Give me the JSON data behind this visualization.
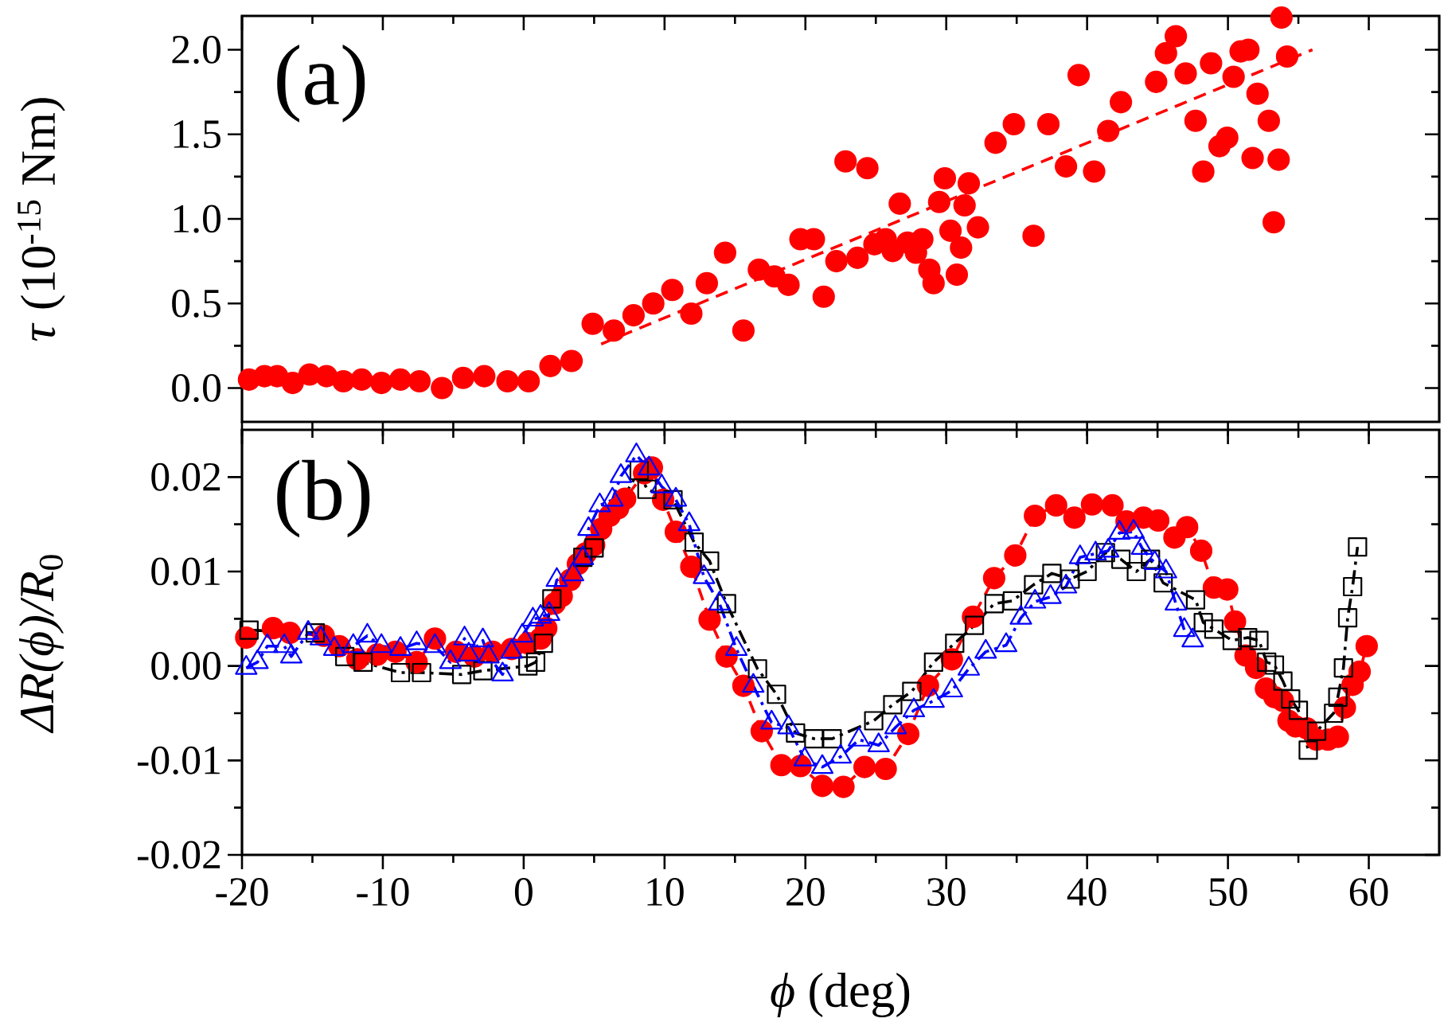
{
  "chart_data": [
    {
      "type": "scatter",
      "ylabel": "*τ* (10$^{-15}$ Nm)",
      "annotations": [
        "(a)"
      ],
      "xlim": [
        -20,
        65
      ],
      "xticks": [
        -20,
        -10,
        0,
        10,
        20,
        30,
        40,
        50,
        60
      ],
      "ylim": [
        -0.2,
        2.2
      ],
      "yticks": [
        {
          "value": 0,
          "label": "0.0"
        },
        {
          "value": 0.5,
          "label": "0.5"
        },
        {
          "value": 1,
          "label": "1.0"
        },
        {
          "value": 1.5,
          "label": "1.5"
        },
        {
          "value": 2,
          "label": "2.0"
        }
      ],
      "tick_labels": "y",
      "series": [
        {
          "type": "scatter",
          "color": "#ff0000",
          "marker": "circle",
          "x": [
            -19.5,
            -18.4,
            -17.5,
            -16.4,
            -15.2,
            -14.0,
            -12.8,
            -11.5,
            -10.1,
            -8.75,
            -7.4,
            -5.8,
            -4.3,
            -2.8,
            -1.15,
            0.35,
            1.9,
            3.4,
            4.9,
            6.4,
            7.8,
            9.2,
            10.55,
            11.9,
            13.0,
            14.3,
            15.6,
            16.7,
            17.8,
            18.8,
            19.65,
            20.6,
            21.3,
            22.2,
            23.7,
            22.85,
            24.4,
            24.9,
            25.7,
            26.2,
            26.7,
            27.25,
            27.85,
            28.3,
            28.8,
            29.1,
            29.5,
            29.9,
            30.3,
            30.75,
            31.05,
            31.3,
            31.6,
            32.25,
            33.5,
            34.8,
            36.2,
            37.25,
            38.5,
            39.4,
            40.5,
            41.5,
            42.4,
            44.9,
            45.6,
            46.3,
            47.0,
            47.7,
            48.25,
            48.8,
            49.4,
            49.95,
            50.4,
            50.9,
            51.45,
            51.75,
            52.1,
            52.9,
            53.25,
            53.6,
            53.8,
            54.2
          ],
          "values": [
            0.05,
            0.07,
            0.07,
            0.03,
            0.08,
            0.07,
            0.04,
            0.05,
            0.03,
            0.05,
            0.04,
            0.0,
            0.06,
            0.07,
            0.04,
            0.04,
            0.13,
            0.16,
            0.38,
            0.34,
            0.43,
            0.5,
            0.58,
            0.44,
            0.62,
            0.8,
            0.34,
            0.7,
            0.66,
            0.61,
            0.88,
            0.88,
            0.54,
            0.75,
            0.77,
            1.34,
            1.3,
            0.85,
            0.88,
            0.81,
            1.09,
            0.86,
            0.8,
            0.88,
            0.7,
            0.62,
            1.1,
            1.24,
            0.93,
            0.67,
            0.83,
            1.08,
            1.21,
            0.95,
            1.45,
            1.56,
            0.9,
            1.56,
            1.31,
            1.85,
            1.28,
            1.52,
            1.69,
            1.81,
            1.98,
            2.08,
            1.86,
            1.58,
            1.28,
            1.92,
            1.43,
            1.48,
            1.84,
            1.99,
            2.0,
            1.36,
            1.74,
            1.58,
            0.98,
            1.35,
            2.19,
            1.96
          ]
        },
        {
          "type": "line",
          "color": "#ff0000",
          "marker": "none",
          "line_style": "dashed",
          "x": [
            5.5,
            56
          ],
          "values": [
            0.26,
            2.0
          ]
        }
      ]
    },
    {
      "type": "line",
      "xlabel": "*ϕ* (deg)",
      "ylabel": "*ΔR(ϕ)/R*$_{0}$",
      "annotations": [
        "(b)"
      ],
      "xlim": [
        -20,
        65
      ],
      "xticks": [
        -20,
        -10,
        0,
        10,
        20,
        30,
        40,
        50,
        60
      ],
      "ylim": [
        -0.02,
        0.025
      ],
      "yticks": [
        {
          "value": -0.02,
          "label": "-0.02"
        },
        {
          "value": -0.01,
          "label": "-0.01"
        },
        {
          "value": 0,
          "label": "0.00"
        },
        {
          "value": 0.01,
          "label": "0.01"
        },
        {
          "value": 0.02,
          "label": "0.02"
        }
      ],
      "series": [
        {
          "color": "#ff0000",
          "marker": "circle",
          "line_style": "dashed",
          "x": [
            -19.7,
            -17.8,
            -16.6,
            -14.2,
            -13.1,
            -11.8,
            -10.4,
            -9.1,
            -7.6,
            -6.3,
            -4.8,
            -3.5,
            -2.2,
            -0.85,
            0.3,
            1.2,
            1.6,
            2.2,
            2.7,
            3.3,
            3.85,
            4.4,
            5.0,
            5.5,
            6.1,
            6.7,
            7.2,
            8.55,
            9.1,
            9.9,
            10.8,
            11.9,
            13.2,
            14.4,
            15.6,
            16.9,
            18.3,
            19.65,
            21.2,
            22.7,
            24.2,
            25.7,
            27.3,
            28.7,
            30.4,
            31.9,
            33.4,
            34.9,
            36.3,
            37.8,
            39.1,
            40.35,
            41.8,
            42.8,
            44.0,
            45.05,
            46.2,
            47.1,
            48.1,
            49.0,
            49.95,
            50.5,
            51.25,
            52.0,
            52.7,
            53.3,
            53.9,
            54.3,
            54.8,
            55.6,
            56.3,
            57.1,
            57.8,
            58.3,
            58.85,
            59.35,
            59.85
          ],
          "values": [
            0.003,
            0.004,
            0.0035,
            0.0032,
            0.0021,
            0.0007,
            0.0012,
            0.0015,
            0.0004,
            0.0029,
            0.0015,
            0.001,
            0.0015,
            0.0018,
            0.0024,
            0.0029,
            0.004,
            0.0066,
            0.0074,
            0.0091,
            0.0108,
            0.0119,
            0.0128,
            0.0145,
            0.0159,
            0.0167,
            0.0177,
            0.0204,
            0.021,
            0.0176,
            0.0142,
            0.0105,
            0.0049,
            0.001,
            -0.0021,
            -0.0069,
            -0.0105,
            -0.0106,
            -0.0127,
            -0.0128,
            -0.0107,
            -0.0109,
            -0.0072,
            -0.0021,
            0.0007,
            0.0052,
            0.0093,
            0.0117,
            0.0159,
            0.017,
            0.0157,
            0.0171,
            0.017,
            0.0153,
            0.0157,
            0.0154,
            0.0136,
            0.0147,
            0.0122,
            0.0083,
            0.0081,
            0.0047,
            0.0011,
            -0.0002,
            -0.0024,
            -0.0033,
            -0.0037,
            -0.0058,
            -0.0064,
            -0.0066,
            -0.0078,
            -0.0078,
            -0.0075,
            -0.0044,
            -0.002,
            -0.0006,
            0.0021
          ]
        },
        {
          "color": "#000000",
          "marker": "square",
          "line_style": "dashdot",
          "x": [
            -19.5,
            -14.8,
            -12.7,
            -11.4,
            -8.75,
            -7.25,
            -4.4,
            -2.9,
            0.3,
            0.85,
            1.4,
            2.0,
            4.2,
            5.0,
            8.2,
            8.75,
            10.6,
            12.1,
            13.2,
            14.4,
            16.6,
            17.95,
            19.3,
            20.6,
            21.9,
            24.85,
            26.2,
            27.55,
            29.1,
            30.6,
            32.0,
            33.4,
            34.7,
            36.2,
            37.5,
            38.8,
            40.0,
            41.3,
            42.4,
            43.5,
            44.5,
            45.4,
            47.7,
            48.25,
            49.0,
            50.3,
            51.4,
            52.2,
            52.75,
            53.3,
            53.9,
            54.45,
            55.0,
            55.7,
            56.3,
            57.5,
            57.8,
            58.2,
            58.5,
            58.85,
            59.2
          ],
          "values": [
            0.0038,
            0.0035,
            0.001,
            0.0004,
            -0.0007,
            -0.0007,
            -0.0009,
            -0.0005,
            0.0,
            0.0004,
            0.0024,
            0.0071,
            0.0115,
            0.0125,
            0.0207,
            0.0187,
            0.0176,
            0.0131,
            0.0111,
            0.0066,
            -0.0003,
            -0.003,
            -0.0071,
            -0.0077,
            -0.0077,
            -0.0058,
            -0.0041,
            -0.0027,
            0.0004,
            0.0024,
            0.0043,
            0.0066,
            0.0069,
            0.0086,
            0.0098,
            0.0092,
            0.01,
            0.012,
            0.0113,
            0.01,
            0.0113,
            0.0088,
            0.007,
            0.0046,
            0.0039,
            0.0027,
            0.003,
            0.0027,
            0.0004,
            0.0001,
            -0.0016,
            -0.0035,
            -0.0047,
            -0.0089,
            -0.0069,
            -0.005,
            -0.0033,
            -0.0002,
            0.0051,
            0.0084,
            0.0126
          ]
        },
        {
          "color": "#0000ff",
          "marker": "triangle",
          "line_style": "dashdot",
          "x": [
            -19.7,
            -18.9,
            -18.2,
            -17.0,
            -16.5,
            -15.3,
            -14.4,
            -13.45,
            -12.1,
            -11.1,
            -10.1,
            -8.75,
            -7.6,
            -6.3,
            -5.2,
            -4.2,
            -3.9,
            -2.9,
            -2.5,
            -1.5,
            -0.85,
            -0.1,
            0.65,
            1.2,
            1.8,
            2.35,
            3.5,
            4.2,
            4.6,
            5.4,
            6.3,
            6.9,
            8.0,
            8.9,
            9.8,
            10.8,
            11.75,
            12.8,
            13.9,
            15.1,
            16.3,
            17.6,
            18.8,
            19.95,
            21.2,
            22.5,
            23.8,
            25.2,
            26.4,
            27.7,
            29.1,
            30.4,
            31.6,
            32.8,
            34.25,
            35.3,
            36.3,
            37.4,
            38.5,
            39.5,
            40.6,
            41.5,
            42.3,
            43.3,
            43.9,
            44.8,
            45.6,
            46.3,
            46.9,
            47.5
          ],
          "values": [
            -0.0002,
            0.0004,
            0.0021,
            0.0021,
            0.001,
            0.0035,
            0.0029,
            0.0018,
            0.0021,
            0.0032,
            0.0021,
            0.0018,
            0.0024,
            0.0021,
            0.0004,
            0.0029,
            0.0012,
            0.0027,
            0.001,
            -0.0009,
            0.0015,
            0.0032,
            0.0049,
            0.0052,
            0.0055,
            0.0091,
            0.0097,
            0.0114,
            0.0145,
            0.017,
            0.0176,
            0.0201,
            0.0223,
            0.0209,
            0.019,
            0.0176,
            0.015,
            0.0094,
            0.0066,
            0.0018,
            -0.0021,
            -0.006,
            -0.0065,
            -0.0099,
            -0.0107,
            -0.0096,
            -0.0078,
            -0.0084,
            -0.0065,
            -0.0047,
            -0.0037,
            -0.0026,
            -0.0003,
            0.0015,
            0.0022,
            0.0051,
            0.0068,
            0.0073,
            0.0084,
            0.0115,
            0.0119,
            0.0122,
            0.0141,
            0.0142,
            0.0125,
            0.0109,
            0.01,
            0.0066,
            0.0038,
            0.0027
          ]
        }
      ]
    }
  ]
}
